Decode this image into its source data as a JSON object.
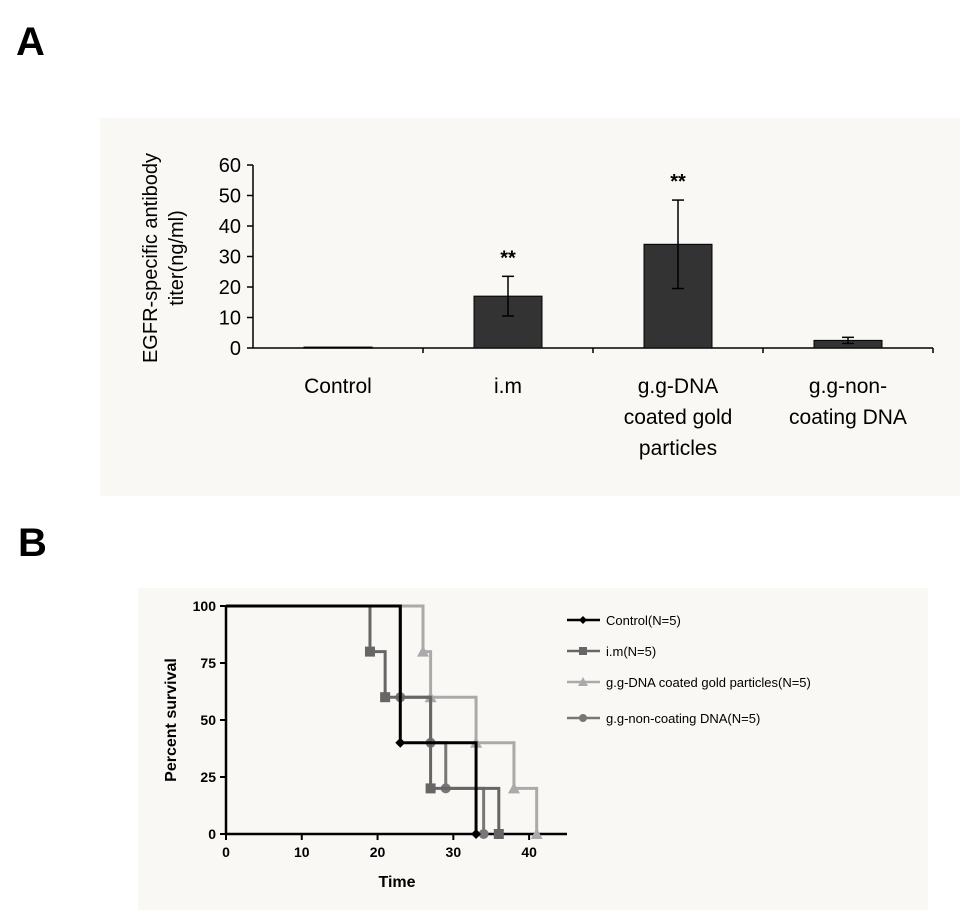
{
  "panels": {
    "a_letter": "A",
    "b_letter": "B"
  },
  "chart_data": [
    {
      "type": "bar",
      "panel": "A",
      "categories": [
        [
          "Control"
        ],
        [
          "i.m"
        ],
        [
          "g.g-DNA",
          "coated gold",
          "particles"
        ],
        [
          "g.g-non-",
          "coating DNA"
        ]
      ],
      "values": [
        0.3,
        17,
        34,
        2.5
      ],
      "errors": [
        0,
        6.5,
        14.5,
        1
      ],
      "significance": [
        "",
        "**",
        "**",
        ""
      ],
      "ylabel_lines": [
        "EGFR-specific antibody",
        "titer(ng/ml)"
      ],
      "ylim": [
        0,
        60
      ],
      "yticks": [
        0,
        10,
        20,
        30,
        40,
        50,
        60
      ],
      "bar_color": "#333333"
    },
    {
      "type": "line",
      "subtype": "step",
      "panel": "B",
      "xlabel": "Time",
      "ylabel": "Percent survival",
      "xlim": [
        0,
        45
      ],
      "ylim": [
        0,
        100
      ],
      "xticks": [
        0,
        10,
        20,
        30,
        40
      ],
      "yticks": [
        0,
        25,
        50,
        75,
        100
      ],
      "series": [
        {
          "name": "Control(N=5)",
          "color": "#000000",
          "marker": "diamond",
          "x": [
            0,
            23,
            23,
            33,
            33
          ],
          "y": [
            100,
            100,
            40,
            40,
            0
          ],
          "marks": [
            [
              23,
              40
            ],
            [
              33,
              0
            ]
          ]
        },
        {
          "name": "i.m(N=5)",
          "color": "#666666",
          "marker": "square",
          "x": [
            0,
            19,
            19,
            21,
            21,
            27,
            27,
            36,
            36
          ],
          "y": [
            100,
            100,
            80,
            80,
            60,
            60,
            20,
            20,
            0
          ],
          "marks": [
            [
              19,
              80
            ],
            [
              21,
              60
            ],
            [
              27,
              20
            ],
            [
              36,
              0
            ]
          ]
        },
        {
          "name": "g.g-DNA coated gold particles(N=5)",
          "color": "#aaaaaa",
          "marker": "triangle",
          "x": [
            0,
            26,
            26,
            27,
            27,
            33,
            33,
            38,
            38,
            41,
            41
          ],
          "y": [
            100,
            100,
            80,
            80,
            60,
            60,
            40,
            40,
            20,
            20,
            0
          ],
          "marks": [
            [
              26,
              80
            ],
            [
              27,
              60
            ],
            [
              33,
              40
            ],
            [
              38,
              20
            ],
            [
              41,
              0
            ]
          ]
        },
        {
          "name": "g.g-non-coating DNA(N=5)",
          "color": "#777777",
          "marker": "circle",
          "x": [
            0,
            23,
            23,
            27,
            27,
            29,
            29,
            34,
            34
          ],
          "y": [
            100,
            100,
            60,
            60,
            40,
            40,
            20,
            20,
            0
          ],
          "marks": [
            [
              23,
              60
            ],
            [
              27,
              40
            ],
            [
              29,
              20
            ],
            [
              34,
              0
            ]
          ]
        }
      ]
    }
  ]
}
